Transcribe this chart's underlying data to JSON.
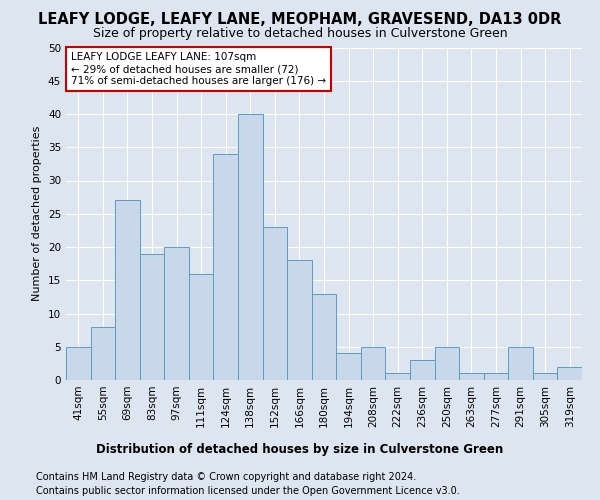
{
  "title": "LEAFY LODGE, LEAFY LANE, MEOPHAM, GRAVESEND, DA13 0DR",
  "subtitle": "Size of property relative to detached houses in Culverstone Green",
  "xlabel": "Distribution of detached houses by size in Culverstone Green",
  "ylabel": "Number of detached properties",
  "footer1": "Contains HM Land Registry data © Crown copyright and database right 2024.",
  "footer2": "Contains public sector information licensed under the Open Government Licence v3.0.",
  "categories": [
    "41sqm",
    "55sqm",
    "69sqm",
    "83sqm",
    "97sqm",
    "111sqm",
    "124sqm",
    "138sqm",
    "152sqm",
    "166sqm",
    "180sqm",
    "194sqm",
    "208sqm",
    "222sqm",
    "236sqm",
    "250sqm",
    "263sqm",
    "277sqm",
    "291sqm",
    "305sqm",
    "319sqm"
  ],
  "values": [
    5,
    8,
    27,
    19,
    20,
    16,
    34,
    40,
    23,
    18,
    13,
    4,
    5,
    1,
    3,
    5,
    1,
    1,
    5,
    1,
    2
  ],
  "bar_color": "#c8d8ea",
  "bar_edge_color": "#5a9ec0",
  "background_color": "#dde6f0",
  "plot_background": "#dde6f0",
  "grid_color": "#ffffff",
  "ylim": [
    0,
    50
  ],
  "yticks": [
    0,
    5,
    10,
    15,
    20,
    25,
    30,
    35,
    40,
    45,
    50
  ],
  "annotation_text": "LEAFY LODGE LEAFY LANE: 107sqm\n← 29% of detached houses are smaller (72)\n71% of semi-detached houses are larger (176) →",
  "annotation_box_color": "#ffffff",
  "annotation_border_color": "#cc0000",
  "title_fontsize": 10.5,
  "subtitle_fontsize": 9,
  "axis_label_fontsize": 8,
  "tick_fontsize": 7.5,
  "footer_fontsize": 7,
  "xlabel_fontsize": 8.5
}
